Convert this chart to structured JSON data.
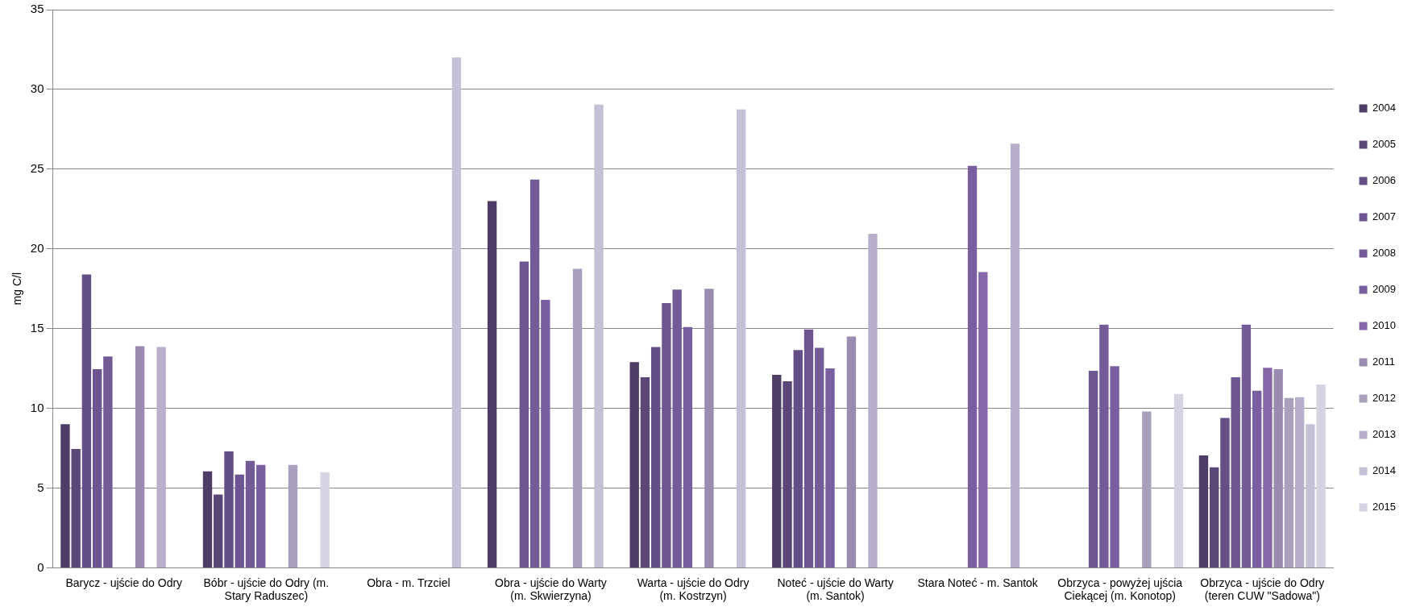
{
  "chart_data": {
    "type": "bar",
    "ylabel": "mg C/l",
    "categories": [
      "Barycz - ujście do Odry",
      "Bóbr - ujście do Odry (m. Stary Raduszec)",
      "Obra - m. Trzciel",
      "Obra - ujście do Warty (m. Skwierzyna)",
      "Warta - ujście do Odry (m. Kostrzyn)",
      "Noteć - ujście do Warty (m. Santok)",
      "Stara Noteć - m. Santok",
      "Obrzyca - powyżej ujścia Ciekącej (m. Konotop)",
      "Obrzyca - ujście do Odry (teren CUW \"Sadowa\")"
    ],
    "series": [
      {
        "name": "2004",
        "color": "#4e3d66",
        "values": [
          9.0,
          6.05,
          null,
          23.0,
          12.9,
          12.1,
          null,
          null,
          7.05
        ]
      },
      {
        "name": "2005",
        "color": "#5a4677",
        "values": [
          7.45,
          4.6,
          null,
          null,
          11.95,
          11.7,
          null,
          null,
          6.3
        ]
      },
      {
        "name": "2006",
        "color": "#634e85",
        "values": [
          18.4,
          7.3,
          null,
          null,
          13.85,
          13.65,
          null,
          null,
          9.4
        ]
      },
      {
        "name": "2007",
        "color": "#6c5590",
        "values": [
          12.45,
          5.85,
          null,
          19.2,
          16.6,
          14.95,
          null,
          12.35,
          11.95
        ]
      },
      {
        "name": "2008",
        "color": "#735b98",
        "values": [
          13.25,
          6.7,
          null,
          24.35,
          17.45,
          13.8,
          null,
          15.25,
          15.25
        ]
      },
      {
        "name": "2009",
        "color": "#7a5fa0",
        "values": [
          null,
          6.45,
          null,
          16.8,
          15.1,
          12.5,
          25.2,
          12.65,
          11.1
        ]
      },
      {
        "name": "2010",
        "color": "#8468a8",
        "values": [
          null,
          null,
          null,
          null,
          null,
          null,
          18.55,
          null,
          12.55
        ]
      },
      {
        "name": "2011",
        "color": "#9a8bb0",
        "values": [
          13.9,
          null,
          null,
          null,
          17.5,
          14.5,
          null,
          null,
          12.45
        ]
      },
      {
        "name": "2012",
        "color": "#a9a0bd",
        "values": [
          null,
          6.45,
          null,
          18.75,
          null,
          null,
          null,
          9.8,
          10.65
        ]
      },
      {
        "name": "2013",
        "color": "#b8b0cb",
        "values": [
          13.85,
          null,
          null,
          null,
          null,
          20.95,
          26.6,
          null,
          10.7
        ]
      },
      {
        "name": "2014",
        "color": "#c6c0d6",
        "values": [
          null,
          null,
          32.0,
          29.05,
          28.75,
          null,
          null,
          null,
          9.0
        ]
      },
      {
        "name": "2015",
        "color": "#d6d3e2",
        "values": [
          null,
          6.0,
          null,
          null,
          null,
          null,
          null,
          10.9,
          11.5
        ]
      }
    ],
    "ylim": [
      0,
      35
    ],
    "yticks": [
      0,
      5,
      10,
      15,
      20,
      25,
      30,
      35
    ],
    "grid": "y",
    "legend": "right"
  }
}
